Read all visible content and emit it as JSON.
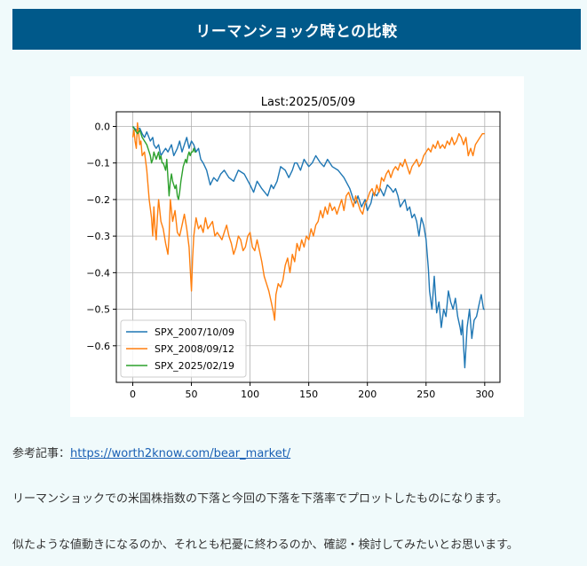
{
  "banner": {
    "title": "リーマンショック時との比較"
  },
  "paragraphs": {
    "ref_label": "参考記事：",
    "ref_link": "https://worth2know.com/bear_market/",
    "p2": "リーマンショックでの米国株指数の下落と今回の下落を下落率でプロットしたものになります。",
    "p3": "似たような値動きになるのか、それとも杞憂に終わるのか、確認・検討してみたいとお思います。"
  },
  "chart_data": {
    "type": "line",
    "title": "Last:2025/05/09",
    "xlabel": "",
    "ylabel": "",
    "xlim": [
      -14,
      313
    ],
    "ylim": [
      -0.7,
      0.04
    ],
    "xticks": [
      0,
      50,
      100,
      150,
      200,
      250,
      300
    ],
    "yticks": [
      0.0,
      -0.1,
      -0.2,
      -0.3,
      -0.4,
      -0.5,
      -0.6
    ],
    "ytick_labels": [
      "0.0",
      "−0.1",
      "−0.2",
      "−0.3",
      "−0.4",
      "−0.5",
      "−0.6"
    ],
    "grid": true,
    "legend_position": "lower-left",
    "series": [
      {
        "name": "SPX_2007/10/09",
        "color": "#1f77b4",
        "x": [
          0,
          3,
          6,
          8,
          10,
          12,
          15,
          17,
          18,
          20,
          22,
          24,
          26,
          28,
          30,
          33,
          35,
          38,
          40,
          42,
          44,
          46,
          48,
          50,
          52,
          54,
          56,
          58,
          60,
          63,
          66,
          69,
          72,
          75,
          78,
          82,
          86,
          90,
          95,
          100,
          103,
          106,
          110,
          115,
          118,
          120,
          123,
          126,
          130,
          133,
          136,
          138,
          140,
          143,
          146,
          150,
          153,
          156,
          160,
          163,
          166,
          170,
          175,
          180,
          185,
          188,
          190,
          192,
          195,
          198,
          200,
          203,
          205,
          208,
          211,
          214,
          217,
          220,
          222,
          224,
          226,
          228,
          230,
          232,
          234,
          236,
          238,
          240,
          242,
          244,
          246,
          248,
          250,
          251,
          252,
          253,
          255,
          257,
          259,
          261,
          263,
          265,
          267,
          269,
          271,
          273,
          275,
          277,
          279,
          280,
          281,
          282,
          283,
          285,
          287,
          289,
          291,
          293,
          295,
          297,
          299,
          300
        ],
        "y": [
          0.0,
          -0.01,
          -0.005,
          -0.02,
          -0.03,
          -0.015,
          -0.04,
          -0.03,
          -0.05,
          -0.06,
          -0.05,
          -0.08,
          -0.07,
          -0.06,
          -0.07,
          -0.05,
          -0.08,
          -0.06,
          -0.04,
          -0.07,
          -0.05,
          -0.03,
          -0.06,
          -0.04,
          -0.05,
          -0.07,
          -0.06,
          -0.09,
          -0.1,
          -0.12,
          -0.16,
          -0.14,
          -0.15,
          -0.13,
          -0.12,
          -0.14,
          -0.15,
          -0.12,
          -0.13,
          -0.16,
          -0.18,
          -0.15,
          -0.17,
          -0.19,
          -0.16,
          -0.17,
          -0.15,
          -0.11,
          -0.12,
          -0.14,
          -0.12,
          -0.1,
          -0.1,
          -0.12,
          -0.09,
          -0.11,
          -0.1,
          -0.08,
          -0.1,
          -0.11,
          -0.09,
          -0.11,
          -0.12,
          -0.14,
          -0.17,
          -0.2,
          -0.21,
          -0.19,
          -0.22,
          -0.2,
          -0.23,
          -0.21,
          -0.18,
          -0.19,
          -0.17,
          -0.19,
          -0.16,
          -0.17,
          -0.18,
          -0.17,
          -0.19,
          -0.22,
          -0.21,
          -0.2,
          -0.23,
          -0.22,
          -0.25,
          -0.24,
          -0.26,
          -0.3,
          -0.25,
          -0.27,
          -0.31,
          -0.35,
          -0.39,
          -0.45,
          -0.5,
          -0.41,
          -0.51,
          -0.48,
          -0.55,
          -0.5,
          -0.52,
          -0.45,
          -0.48,
          -0.5,
          -0.47,
          -0.52,
          -0.55,
          -0.57,
          -0.53,
          -0.6,
          -0.66,
          -0.55,
          -0.5,
          -0.58,
          -0.53,
          -0.52,
          -0.49,
          -0.46,
          -0.5,
          -0.5
        ]
      },
      {
        "name": "SPX_2008/09/12",
        "color": "#ff7f0e",
        "x": [
          0,
          1,
          2,
          3,
          4,
          5,
          6,
          7,
          8,
          10,
          12,
          14,
          16,
          17,
          18,
          19,
          20,
          21,
          22,
          24,
          26,
          28,
          30,
          31,
          32,
          34,
          36,
          38,
          40,
          42,
          44,
          46,
          48,
          49,
          50,
          51,
          52,
          54,
          56,
          58,
          60,
          62,
          64,
          66,
          68,
          70,
          72,
          74,
          76,
          78,
          80,
          82,
          84,
          86,
          88,
          90,
          92,
          94,
          96,
          98,
          100,
          102,
          104,
          106,
          108,
          110,
          112,
          114,
          116,
          118,
          120,
          121,
          122,
          124,
          126,
          128,
          130,
          132,
          134,
          136,
          138,
          140,
          142,
          144,
          146,
          148,
          150,
          152,
          154,
          156,
          158,
          160,
          162,
          164,
          166,
          168,
          170,
          172,
          174,
          176,
          178,
          180,
          182,
          184,
          186,
          188,
          190,
          192,
          194,
          196,
          198,
          200,
          202,
          204,
          206,
          208,
          210,
          212,
          214,
          216,
          218,
          220,
          222,
          224,
          226,
          228,
          230,
          232,
          234,
          236,
          238,
          240,
          242,
          244,
          246,
          248,
          250,
          252,
          254,
          256,
          258,
          260,
          262,
          264,
          266,
          268,
          270,
          272,
          274,
          276,
          278,
          280,
          282,
          284,
          286,
          288,
          290,
          292,
          294,
          296,
          298,
          300
        ],
        "y": [
          -0.03,
          -0.01,
          -0.04,
          -0.06,
          0.01,
          -0.02,
          -0.05,
          -0.04,
          -0.08,
          -0.07,
          -0.12,
          -0.2,
          -0.25,
          -0.3,
          -0.22,
          -0.28,
          -0.31,
          -0.25,
          -0.2,
          -0.26,
          -0.28,
          -0.32,
          -0.35,
          -0.3,
          -0.2,
          -0.26,
          -0.23,
          -0.29,
          -0.3,
          -0.27,
          -0.24,
          -0.28,
          -0.33,
          -0.39,
          -0.45,
          -0.36,
          -0.3,
          -0.25,
          -0.28,
          -0.27,
          -0.29,
          -0.25,
          -0.28,
          -0.27,
          -0.26,
          -0.3,
          -0.29,
          -0.3,
          -0.31,
          -0.29,
          -0.27,
          -0.3,
          -0.32,
          -0.35,
          -0.33,
          -0.3,
          -0.31,
          -0.34,
          -0.33,
          -0.3,
          -0.29,
          -0.33,
          -0.34,
          -0.31,
          -0.34,
          -0.37,
          -0.41,
          -0.43,
          -0.45,
          -0.48,
          -0.51,
          -0.53,
          -0.46,
          -0.43,
          -0.44,
          -0.42,
          -0.38,
          -0.36,
          -0.4,
          -0.35,
          -0.37,
          -0.32,
          -0.34,
          -0.31,
          -0.33,
          -0.3,
          -0.31,
          -0.28,
          -0.3,
          -0.27,
          -0.26,
          -0.23,
          -0.25,
          -0.22,
          -0.24,
          -0.21,
          -0.23,
          -0.22,
          -0.24,
          -0.22,
          -0.2,
          -0.23,
          -0.19,
          -0.18,
          -0.2,
          -0.22,
          -0.19,
          -0.21,
          -0.23,
          -0.24,
          -0.21,
          -0.2,
          -0.18,
          -0.17,
          -0.19,
          -0.16,
          -0.18,
          -0.14,
          -0.15,
          -0.13,
          -0.12,
          -0.14,
          -0.12,
          -0.11,
          -0.12,
          -0.1,
          -0.11,
          -0.09,
          -0.11,
          -0.13,
          -0.11,
          -0.1,
          -0.09,
          -0.11,
          -0.1,
          -0.08,
          -0.07,
          -0.06,
          -0.07,
          -0.05,
          -0.06,
          -0.04,
          -0.06,
          -0.05,
          -0.06,
          -0.04,
          -0.05,
          -0.03,
          -0.05,
          -0.04,
          -0.02,
          -0.03,
          -0.05,
          -0.03,
          -0.08,
          -0.06,
          -0.08,
          -0.05,
          -0.04,
          -0.03,
          -0.02,
          -0.02
        ]
      },
      {
        "name": "SPX_2025/02/19",
        "color": "#2ca02c",
        "x": [
          0,
          2,
          4,
          6,
          8,
          10,
          12,
          14,
          15,
          16,
          17,
          18,
          19,
          20,
          21,
          22,
          23,
          24,
          25,
          26,
          27,
          28,
          29,
          30,
          31,
          32,
          33,
          34,
          35,
          36,
          37,
          38,
          39,
          40,
          41,
          42,
          43,
          44,
          45,
          46,
          47,
          48,
          49,
          50,
          51,
          52,
          53,
          54
        ],
        "y": [
          0.0,
          -0.01,
          -0.02,
          -0.01,
          -0.03,
          -0.04,
          -0.05,
          -0.07,
          -0.08,
          -0.1,
          -0.09,
          -0.07,
          -0.08,
          -0.09,
          -0.08,
          -0.07,
          -0.09,
          -0.08,
          -0.1,
          -0.1,
          -0.11,
          -0.12,
          -0.09,
          -0.14,
          -0.19,
          -0.15,
          -0.13,
          -0.15,
          -0.16,
          -0.17,
          -0.16,
          -0.19,
          -0.2,
          -0.18,
          -0.15,
          -0.13,
          -0.11,
          -0.1,
          -0.09,
          -0.1,
          -0.08,
          -0.07,
          -0.08,
          -0.07,
          -0.07,
          -0.06,
          -0.07,
          -0.07
        ]
      }
    ]
  }
}
